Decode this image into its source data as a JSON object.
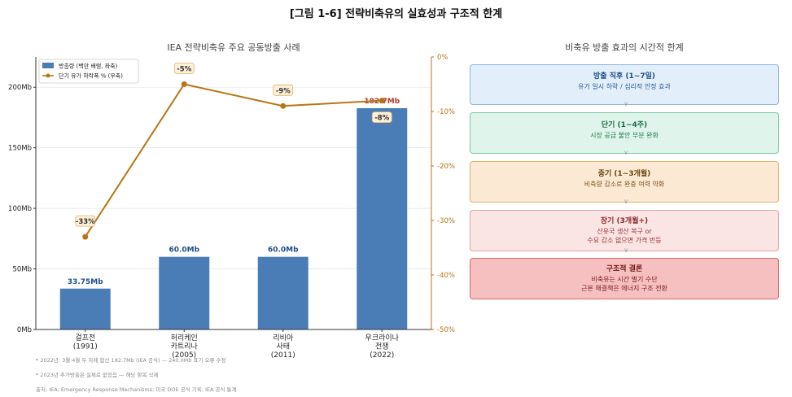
{
  "figure_title": "[그림 1-6]  전략비축유의 실효성과 구조적 한계",
  "left_panel_title": "IEA 전략비축유 주요 공동방출 사례",
  "right_panel_title": "비축유 방출 효과의 시간적 한계",
  "chart_data": {
    "type": "bar",
    "categories": [
      [
        "걸프전",
        "(1991)"
      ],
      [
        "허리케인",
        "카트리나",
        "(2005)"
      ],
      [
        "리비아",
        "사태",
        "(2011)"
      ],
      [
        "우크라이나",
        "전쟁",
        "(2022)"
      ]
    ],
    "series": [
      {
        "name": "방출량 (백만 배럴, 좌축)",
        "type": "bar",
        "axis": "left",
        "values": [
          33.75,
          60.0,
          60.0,
          182.7
        ],
        "labels": [
          "33.75Mb",
          "60.0Mb",
          "60.0Mb",
          "182.7Mb"
        ],
        "color": "#4a7db5"
      },
      {
        "name": "단기 유가 하락폭 % (우축)",
        "type": "line",
        "axis": "right",
        "values": [
          -33,
          -5,
          -9,
          -8
        ],
        "labels": [
          "-33%",
          "-5%",
          "-9%",
          "-8%"
        ],
        "color": "#b87514"
      }
    ],
    "left_axis": {
      "min": 0,
      "max": 225,
      "ticks": [
        0,
        50,
        100,
        150,
        200
      ],
      "tick_labels": [
        "0Mb",
        "50Mb",
        "100Mb",
        "150Mb",
        "200Mb"
      ]
    },
    "right_axis": {
      "min": -50,
      "max": 0,
      "ticks": [
        0,
        -10,
        -20,
        -30,
        -40,
        -50
      ],
      "tick_labels": [
        "0%",
        "-10%",
        "-20%",
        "-30%",
        "-40%",
        "-50%"
      ]
    },
    "legend_position": "top-left",
    "grid": true
  },
  "notes": [
    "* 2022년: 3월·4월 두 차례 합산 182.7Mb (IEA 공식) — 240.0Mb 표기 오류 수정",
    "* 2023년 추가방출은 실제로 없었음 — 해당 항목 삭제",
    "출처: IEA, Emergency Response Mechanisms; 미국 DOE 공식 기록; IEA 공식 통계"
  ],
  "stages": [
    {
      "title": "방출 직후 (1~7일)",
      "desc": "유가 일시 하락 / 심리적 안정 효과",
      "bg": "#e3eefb",
      "border": "#8fb5e0",
      "title_color": "#1f4f8a",
      "desc_color": "#2b5c96"
    },
    {
      "title": "단기 (1~4주)",
      "desc": "시장 공급 불안 부분 완화",
      "bg": "#dff4ea",
      "border": "#7ccaa2",
      "title_color": "#1d6b45",
      "desc_color": "#237a50"
    },
    {
      "title": "중기 (1~3개월)",
      "desc": "비축량 감소로 완충 여력 약화",
      "bg": "#fbe9d4",
      "border": "#e2b26a",
      "title_color": "#6b4411",
      "desc_color": "#7a5018"
    },
    {
      "title": "장기 (3개월+)",
      "desc": "산유국 생산 복구 or\n수요 감소 없으면 가격 반등",
      "bg": "#fbe4e4",
      "border": "#e6a3a3",
      "title_color": "#8a2a2a",
      "desc_color": "#9a3232"
    },
    {
      "title": "구조적 결론",
      "desc": "비축유는 시간 벌기 수단\n근본 해결책은 에너지 구조 전환",
      "bg": "#f6c0c0",
      "border": "#d96a6a",
      "title_color": "#6e1414",
      "desc_color": "#7a1a1a"
    }
  ],
  "arrow_glyph": "∨"
}
